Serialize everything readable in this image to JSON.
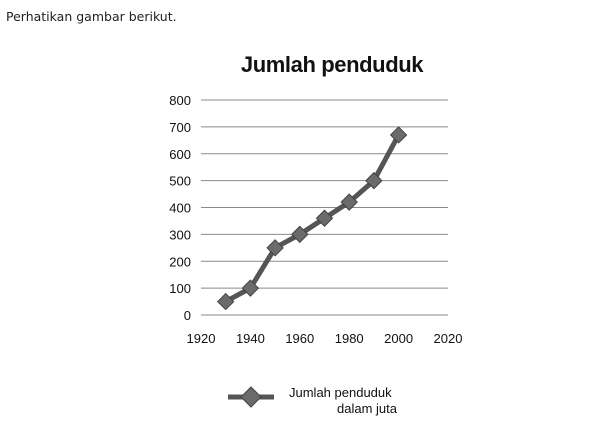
{
  "intro_text": "Perhatikan gambar berikut.",
  "chart_data": {
    "type": "line",
    "title": "Jumlah penduduk",
    "x": [
      1930,
      1940,
      1950,
      1960,
      1970,
      1980,
      1990,
      2000
    ],
    "series": [
      {
        "name": "Jumlah penduduk dalam juta",
        "values": [
          50,
          100,
          250,
          300,
          360,
          420,
          500,
          670
        ]
      }
    ],
    "xlim": [
      1920,
      2020
    ],
    "ylim": [
      0,
      800
    ],
    "xticks": [
      1920,
      1940,
      1960,
      1980,
      2000,
      2020
    ],
    "yticks": [
      0,
      100,
      200,
      300,
      400,
      500,
      600,
      700,
      800
    ],
    "grid": "horizontal",
    "legend_position": "bottom",
    "legend_lines": [
      "Jumlah penduduk",
      "dalam juta"
    ],
    "colors": {
      "line": "#555555",
      "marker": "#6b6b6b",
      "grid": "#8a8a8a"
    }
  }
}
